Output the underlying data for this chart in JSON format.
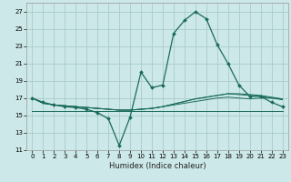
{
  "xlabel": "Humidex (Indice chaleur)",
  "background_color": "#cce8e8",
  "grid_color": "#aacccc",
  "line_color": "#1a6b5a",
  "xlim": [
    -0.5,
    23.5
  ],
  "ylim": [
    11,
    28
  ],
  "xticks": [
    0,
    1,
    2,
    3,
    4,
    5,
    6,
    7,
    8,
    9,
    10,
    11,
    12,
    13,
    14,
    15,
    16,
    17,
    18,
    19,
    20,
    21,
    22,
    23
  ],
  "yticks": [
    11,
    13,
    15,
    17,
    19,
    21,
    23,
    25,
    27
  ],
  "series": [
    [
      17.0,
      16.5,
      16.2,
      16.0,
      15.9,
      15.7,
      15.3,
      14.6,
      11.5,
      14.8,
      20.0,
      18.2,
      18.5,
      24.5,
      26.0,
      27.0,
      26.2,
      23.2,
      21.0,
      18.5,
      17.2,
      17.2,
      16.5,
      16.0
    ],
    [
      17.0,
      16.4,
      16.2,
      16.1,
      16.0,
      15.9,
      15.8,
      15.7,
      15.6,
      15.6,
      15.7,
      15.8,
      16.0,
      16.2,
      16.4,
      16.6,
      16.8,
      17.0,
      17.1,
      17.0,
      16.9,
      17.0,
      17.0,
      16.8
    ],
    [
      17.0,
      16.4,
      16.2,
      16.1,
      16.0,
      15.9,
      15.8,
      15.7,
      15.6,
      15.6,
      15.7,
      15.8,
      16.0,
      16.3,
      16.6,
      16.9,
      17.1,
      17.3,
      17.5,
      17.4,
      17.3,
      17.2,
      17.0,
      16.9
    ],
    [
      17.0,
      16.4,
      16.2,
      16.1,
      16.0,
      15.9,
      15.8,
      15.7,
      15.6,
      15.6,
      15.7,
      15.8,
      16.0,
      16.3,
      16.6,
      16.9,
      17.1,
      17.3,
      17.5,
      17.5,
      17.4,
      17.3,
      17.1,
      16.9
    ],
    [
      15.5,
      15.5,
      15.5,
      15.5,
      15.5,
      15.5,
      15.5,
      15.5,
      15.5,
      15.5,
      15.5,
      15.5,
      15.5,
      15.5,
      15.5,
      15.5,
      15.5,
      15.5,
      15.5,
      15.5,
      15.5,
      15.5,
      15.5,
      15.5
    ]
  ]
}
